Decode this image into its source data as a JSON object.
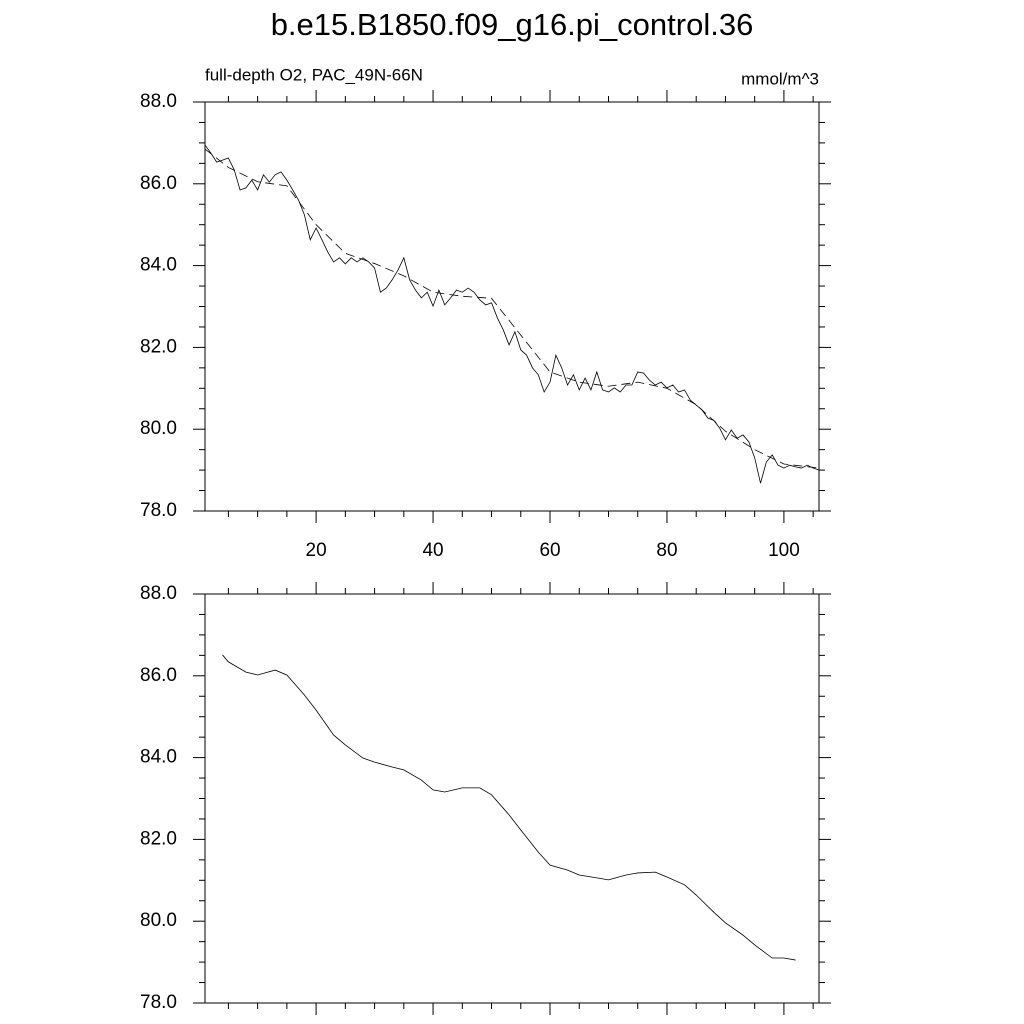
{
  "title": "b.e15.B1850.f09_g16.pi_control.36",
  "chart_data": [
    {
      "type": "line",
      "left_string": "full-depth O2, PAC_49N-66N",
      "right_string": "mmol/m^3",
      "xlim": [
        1,
        106
      ],
      "xticks": [
        20,
        40,
        60,
        80,
        100
      ],
      "xminorticks": [
        5,
        10,
        15,
        25,
        30,
        35,
        45,
        50,
        55,
        65,
        70,
        75,
        85,
        90,
        95,
        105
      ],
      "ylim": [
        78,
        88
      ],
      "yticks": [
        {
          "value": 78,
          "label": "78.0"
        },
        {
          "value": 80,
          "label": "80.0"
        },
        {
          "value": 82,
          "label": "82.0"
        },
        {
          "value": 84,
          "label": "84.0"
        },
        {
          "value": 86,
          "label": "86.0"
        },
        {
          "value": 88,
          "label": "88.0"
        }
      ],
      "yminorticks": [
        78.5,
        79,
        79.5,
        80.5,
        81,
        81.5,
        82.5,
        83,
        83.5,
        84.5,
        85,
        85.5,
        86.5,
        87,
        87.5
      ],
      "xticklabels": true,
      "series": [
        {
          "color": "#000000",
          "style": "solid",
          "x": [
            1,
            2,
            3,
            4,
            5,
            6,
            7,
            8,
            9,
            10,
            11,
            12,
            13,
            14,
            15,
            16,
            17,
            18,
            19,
            20,
            21,
            22,
            23,
            24,
            25,
            26,
            27,
            28,
            29,
            30,
            31,
            32,
            33,
            34,
            35,
            36,
            37,
            38,
            39,
            40,
            41,
            42,
            43,
            44,
            45,
            46,
            47,
            48,
            49,
            50,
            51,
            52,
            53,
            54,
            55,
            56,
            57,
            58,
            59,
            60,
            61,
            62,
            63,
            64,
            65,
            66,
            67,
            68,
            69,
            70,
            71,
            72,
            73,
            74,
            75,
            76,
            77,
            78,
            79,
            80,
            81,
            82,
            83,
            84,
            85,
            86,
            87,
            88,
            89,
            90,
            91,
            92,
            93,
            94,
            95,
            96,
            97,
            98,
            99,
            100,
            101,
            102,
            103,
            104,
            105,
            106
          ],
          "values": [
            86.95,
            86.75,
            86.53,
            86.58,
            86.63,
            86.34,
            85.85,
            85.9,
            86.09,
            85.85,
            86.22,
            86.04,
            86.22,
            86.29,
            86.09,
            85.85,
            85.6,
            85.24,
            84.63,
            84.92,
            84.63,
            84.33,
            84.09,
            84.19,
            84.04,
            84.19,
            84.09,
            84.19,
            84.09,
            83.94,
            83.35,
            83.45,
            83.65,
            83.89,
            84.19,
            83.65,
            83.4,
            83.21,
            83.35,
            83.01,
            83.4,
            83.04,
            83.21,
            83.4,
            83.35,
            83.45,
            83.35,
            83.16,
            83.04,
            83.09,
            82.72,
            82.43,
            82.06,
            82.38,
            81.94,
            81.81,
            81.5,
            81.33,
            80.91,
            81.15,
            81.81,
            81.5,
            81.08,
            81.33,
            80.96,
            81.25,
            80.96,
            81.4,
            80.96,
            80.91,
            81.01,
            80.91,
            81.08,
            81.08,
            81.4,
            81.37,
            81.2,
            81.08,
            81.15,
            81.01,
            81.08,
            80.91,
            80.96,
            80.71,
            80.59,
            80.47,
            80.27,
            80.22,
            80.03,
            79.74,
            79.98,
            79.78,
            79.86,
            79.69,
            79.3,
            78.68,
            79.2,
            79.37,
            79.12,
            79.05,
            79.12,
            79.08,
            79.05,
            79.12,
            79.05,
            79.0
          ]
        },
        {
          "color": "#555555",
          "style": "dashed",
          "x": [
            1,
            5,
            10,
            15,
            20,
            25,
            30,
            35,
            40,
            45,
            50,
            55,
            60,
            65,
            70,
            75,
            80,
            85,
            90,
            95,
            100,
            106
          ],
          "values": [
            86.85,
            86.4,
            86.05,
            85.95,
            85.0,
            84.3,
            84.05,
            83.75,
            83.35,
            83.25,
            83.2,
            82.3,
            81.4,
            81.15,
            81.05,
            81.15,
            81.0,
            80.6,
            79.95,
            79.5,
            79.15,
            79.05
          ]
        }
      ]
    },
    {
      "type": "line",
      "xlim": [
        1,
        106
      ],
      "xticks": [
        20,
        40,
        60,
        80,
        100
      ],
      "xminorticks": [
        5,
        10,
        15,
        25,
        30,
        35,
        45,
        50,
        55,
        65,
        70,
        75,
        85,
        90,
        95,
        105
      ],
      "ylim": [
        78,
        88
      ],
      "yticks": [
        {
          "value": 78,
          "label": "78.0"
        },
        {
          "value": 80,
          "label": "80.0"
        },
        {
          "value": 82,
          "label": "82.0"
        },
        {
          "value": 84,
          "label": "84.0"
        },
        {
          "value": 86,
          "label": "86.0"
        },
        {
          "value": 88,
          "label": "88.0"
        }
      ],
      "yminorticks": [
        78.5,
        79,
        79.5,
        80.5,
        81,
        81.5,
        82.5,
        83,
        83.5,
        84.5,
        85,
        85.5,
        86.5,
        87,
        87.5
      ],
      "xticklabels": false,
      "series": [
        {
          "color": "#000000",
          "style": "solid",
          "x": [
            4,
            5,
            8,
            10,
            13,
            15,
            18,
            20,
            23,
            25,
            28,
            30,
            33,
            35,
            38,
            40,
            42,
            45,
            48,
            50,
            53,
            55,
            58,
            60,
            63,
            65,
            68,
            70,
            73,
            75,
            78,
            80,
            83,
            85,
            88,
            90,
            93,
            95,
            98,
            100,
            102
          ],
          "values": [
            86.51,
            86.34,
            86.09,
            86.02,
            86.14,
            86.02,
            85.53,
            85.16,
            84.55,
            84.31,
            83.99,
            83.89,
            83.77,
            83.7,
            83.45,
            83.21,
            83.16,
            83.26,
            83.26,
            83.09,
            82.6,
            82.23,
            81.69,
            81.37,
            81.25,
            81.13,
            81.06,
            81.01,
            81.13,
            81.18,
            81.2,
            81.08,
            80.89,
            80.64,
            80.22,
            79.96,
            79.66,
            79.42,
            79.1,
            79.1,
            79.05
          ]
        }
      ]
    }
  ]
}
